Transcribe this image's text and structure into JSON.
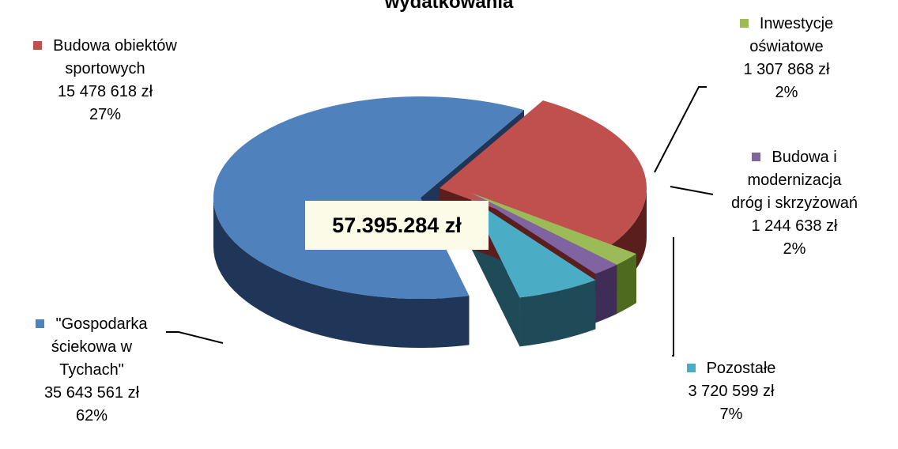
{
  "chart_data": {
    "type": "pie",
    "title": "wydatkowania",
    "total_label": "57.395.284 zł",
    "slices": [
      {
        "name_lines": [
          "Budowa obiektów",
          "sportowych"
        ],
        "value": 15478618,
        "value_label": "15 478 618 zł",
        "percent_label": "27%",
        "color": "#c0504d",
        "side_color": "#5a1e1d"
      },
      {
        "name_lines": [
          "Inwestycje",
          "oświatowe"
        ],
        "value": 1307868,
        "value_label": "1 307 868 zł",
        "percent_label": "2%",
        "color": "#9bbb59",
        "side_color": "#4d6a1f"
      },
      {
        "name_lines": [
          "Budowa i",
          "modernizacja",
          "dróg i skrzyżowań"
        ],
        "value": 1244638,
        "value_label": "1 244 638 zł",
        "percent_label": "2%",
        "color": "#8064a2",
        "side_color": "#3f2d57"
      },
      {
        "name_lines": [
          "Pozostałe"
        ],
        "value": 3720599,
        "value_label": "3 720 599 zł",
        "percent_label": "7%",
        "color": "#4bacc6",
        "side_color": "#1f4a57"
      },
      {
        "name_lines": [
          "\"Gospodarka",
          "ściekowa w",
          "Tychach\""
        ],
        "value": 35643561,
        "value_label": "35 643 561 zł",
        "percent_label": "62%",
        "color": "#4f81bd",
        "side_color": "#1f3658"
      }
    ]
  }
}
